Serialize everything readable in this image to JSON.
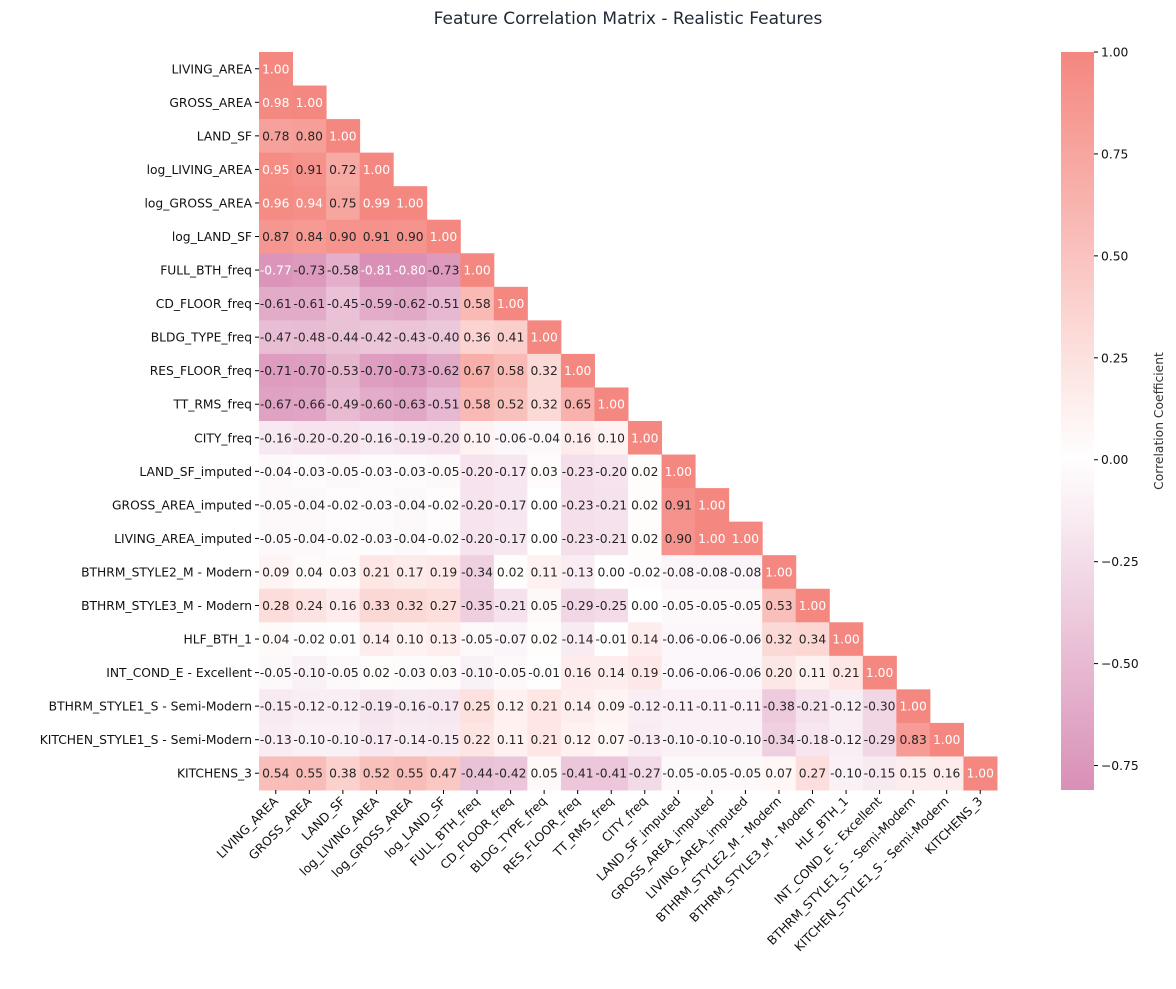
{
  "chart_data": {
    "type": "heatmap",
    "title": "Feature Correlation Matrix - Realistic Features",
    "labels": [
      "LIVING_AREA",
      "GROSS_AREA",
      "LAND_SF",
      "log_LIVING_AREA",
      "log_GROSS_AREA",
      "log_LAND_SF",
      "FULL_BTH_freq",
      "CD_FLOOR_freq",
      "BLDG_TYPE_freq",
      "RES_FLOOR_freq",
      "TT_RMS_freq",
      "CITY_freq",
      "LAND_SF_imputed",
      "GROSS_AREA_imputed",
      "LIVING_AREA_imputed",
      "BTHRM_STYLE2_M - Modern",
      "BTHRM_STYLE3_M - Modern",
      "HLF_BTH_1",
      "INT_COND_E - Excellent",
      "BTHRM_STYLE1_S - Semi-Modern",
      "KITCHEN_STYLE1_S - Semi-Modern",
      "KITCHENS_3"
    ],
    "mask": "upper-triangle",
    "values": [
      [
        1.0
      ],
      [
        0.98,
        1.0
      ],
      [
        0.78,
        0.8,
        1.0
      ],
      [
        0.95,
        0.91,
        0.72,
        1.0
      ],
      [
        0.96,
        0.94,
        0.75,
        0.99,
        1.0
      ],
      [
        0.87,
        0.84,
        0.9,
        0.91,
        0.9,
        1.0
      ],
      [
        -0.77,
        -0.73,
        -0.58,
        -0.81,
        -0.8,
        -0.73,
        1.0
      ],
      [
        -0.61,
        -0.61,
        -0.45,
        -0.59,
        -0.62,
        -0.51,
        0.58,
        1.0
      ],
      [
        -0.47,
        -0.48,
        -0.44,
        -0.42,
        -0.43,
        -0.4,
        0.36,
        0.41,
        1.0
      ],
      [
        -0.71,
        -0.7,
        -0.53,
        -0.7,
        -0.73,
        -0.62,
        0.67,
        0.58,
        0.32,
        1.0
      ],
      [
        -0.67,
        -0.66,
        -0.49,
        -0.6,
        -0.63,
        -0.51,
        0.58,
        0.52,
        0.32,
        0.65,
        1.0
      ],
      [
        -0.16,
        -0.2,
        -0.2,
        -0.16,
        -0.19,
        -0.2,
        0.1,
        -0.06,
        -0.04,
        0.16,
        0.1,
        1.0
      ],
      [
        -0.04,
        -0.03,
        -0.05,
        -0.03,
        -0.03,
        -0.05,
        -0.2,
        -0.17,
        0.03,
        -0.23,
        -0.2,
        0.02,
        1.0
      ],
      [
        -0.05,
        -0.04,
        -0.02,
        -0.03,
        -0.04,
        -0.02,
        -0.2,
        -0.17,
        -0.0,
        -0.23,
        -0.21,
        0.02,
        0.91,
        1.0
      ],
      [
        -0.05,
        -0.04,
        -0.02,
        -0.03,
        -0.04,
        -0.02,
        -0.2,
        -0.17,
        -0.0,
        -0.23,
        -0.21,
        0.02,
        0.9,
        1.0,
        1.0
      ],
      [
        0.09,
        0.04,
        0.03,
        0.21,
        0.17,
        0.19,
        -0.34,
        0.02,
        0.11,
        -0.13,
        0.0,
        -0.02,
        -0.08,
        -0.08,
        -0.08,
        1.0
      ],
      [
        0.28,
        0.24,
        0.16,
        0.33,
        0.32,
        0.27,
        -0.35,
        -0.21,
        0.05,
        -0.29,
        -0.25,
        -0.0,
        -0.05,
        -0.05,
        -0.05,
        0.53,
        1.0
      ],
      [
        0.04,
        -0.02,
        0.01,
        0.14,
        0.1,
        0.13,
        -0.05,
        -0.07,
        0.02,
        -0.14,
        -0.01,
        0.14,
        -0.06,
        -0.06,
        -0.06,
        0.32,
        0.34,
        1.0
      ],
      [
        -0.05,
        -0.1,
        -0.05,
        0.02,
        -0.03,
        0.03,
        -0.1,
        -0.05,
        -0.01,
        0.16,
        0.14,
        0.19,
        -0.06,
        -0.06,
        -0.06,
        0.2,
        0.11,
        0.21,
        1.0
      ],
      [
        -0.15,
        -0.12,
        -0.12,
        -0.19,
        -0.16,
        -0.17,
        0.25,
        0.12,
        0.21,
        0.14,
        0.09,
        -0.12,
        -0.11,
        -0.11,
        -0.11,
        -0.38,
        -0.21,
        -0.12,
        -0.3,
        1.0
      ],
      [
        -0.13,
        -0.1,
        -0.1,
        -0.17,
        -0.14,
        -0.15,
        0.22,
        0.11,
        0.21,
        0.12,
        0.07,
        -0.13,
        -0.1,
        -0.1,
        -0.1,
        -0.34,
        -0.18,
        -0.12,
        -0.29,
        0.83,
        1.0
      ],
      [
        0.54,
        0.55,
        0.38,
        0.52,
        0.55,
        0.47,
        -0.44,
        -0.42,
        0.05,
        -0.41,
        -0.41,
        -0.27,
        -0.05,
        -0.05,
        -0.05,
        0.07,
        0.27,
        -0.1,
        -0.15,
        0.15,
        0.16,
        1.0
      ]
    ],
    "colorbar": {
      "label": "Correlation Coefficient",
      "range": [
        -0.81,
        1.0
      ],
      "ticks": [
        "1.00",
        "0.75",
        "0.50",
        "0.25",
        "0.00",
        "−0.25",
        "−0.50",
        "−0.75"
      ]
    },
    "colors": {
      "positive": "#f4877f",
      "center": "#ffffff",
      "negative": "#d98fb6"
    }
  }
}
